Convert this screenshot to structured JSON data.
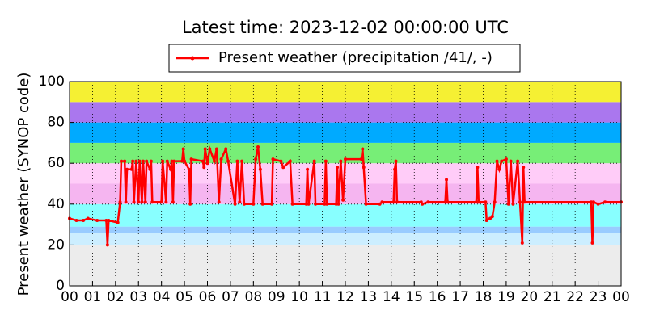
{
  "chart_data": {
    "type": "line",
    "title": "Latest time: 2023-12-02 00:00:00 UTC",
    "y_label": "Present weather (SYNOP code)",
    "legend": "top",
    "grid": true,
    "xlim": [
      0,
      24
    ],
    "ylim": [
      0,
      100
    ],
    "xticks": [
      {
        "value": 0,
        "label": "00"
      },
      {
        "value": 1,
        "label": "01"
      },
      {
        "value": 2,
        "label": "02"
      },
      {
        "value": 3,
        "label": "03"
      },
      {
        "value": 4,
        "label": "04"
      },
      {
        "value": 5,
        "label": "05"
      },
      {
        "value": 6,
        "label": "06"
      },
      {
        "value": 7,
        "label": "07"
      },
      {
        "value": 8,
        "label": "08"
      },
      {
        "value": 9,
        "label": "09"
      },
      {
        "value": 10,
        "label": "10"
      },
      {
        "value": 11,
        "label": "11"
      },
      {
        "value": 12,
        "label": "12"
      },
      {
        "value": 13,
        "label": "13"
      },
      {
        "value": 14,
        "label": "14"
      },
      {
        "value": 15,
        "label": "15"
      },
      {
        "value": 16,
        "label": "16"
      },
      {
        "value": 17,
        "label": "17"
      },
      {
        "value": 18,
        "label": "18"
      },
      {
        "value": 19,
        "label": "19"
      },
      {
        "value": 20,
        "label": "20"
      },
      {
        "value": 21,
        "label": "21"
      },
      {
        "value": 22,
        "label": "22"
      },
      {
        "value": 23,
        "label": "23"
      },
      {
        "value": 24,
        "label": "00"
      }
    ],
    "yticks": [
      0,
      20,
      40,
      60,
      80,
      100
    ],
    "bands": [
      {
        "from": 0,
        "to": 20,
        "color": "#ececec"
      },
      {
        "from": 20,
        "to": 26,
        "color": "#cceeff"
      },
      {
        "from": 26,
        "to": 29,
        "color": "#99ccff"
      },
      {
        "from": 29,
        "to": 40,
        "color": "#88ffff"
      },
      {
        "from": 40,
        "to": 50,
        "color": "#f5b5f0"
      },
      {
        "from": 50,
        "to": 60,
        "color": "#ffccf8"
      },
      {
        "from": 60,
        "to": 70,
        "color": "#77ee77"
      },
      {
        "from": 70,
        "to": 80,
        "color": "#00aaff"
      },
      {
        "from": 80,
        "to": 90,
        "color": "#aa77ee"
      },
      {
        "from": 90,
        "to": 100,
        "color": "#f5f033"
      }
    ],
    "series": [
      {
        "name": "Present weather (precipitation /41/, -)",
        "color": "#ff0000",
        "x": [
          0.0,
          0.3,
          0.6,
          0.8,
          1.2,
          1.6,
          1.65,
          1.7,
          2.1,
          2.2,
          2.25,
          2.4,
          2.45,
          2.5,
          2.7,
          2.75,
          2.8,
          2.9,
          3.0,
          3.05,
          3.15,
          3.2,
          3.3,
          3.35,
          3.5,
          3.55,
          3.6,
          4.0,
          4.05,
          4.2,
          4.25,
          4.4,
          4.45,
          4.5,
          4.55,
          4.9,
          4.95,
          5.0,
          5.2,
          5.25,
          5.3,
          5.8,
          5.85,
          5.9,
          6.0,
          6.1,
          6.3,
          6.4,
          6.5,
          6.6,
          6.8,
          6.9,
          7.2,
          7.3,
          7.4,
          7.5,
          7.6,
          8.0,
          8.1,
          8.2,
          8.3,
          8.4,
          8.8,
          8.85,
          9.2,
          9.3,
          9.6,
          9.7,
          10.3,
          10.35,
          10.4,
          10.65,
          10.7,
          11.1,
          11.15,
          11.2,
          11.6,
          11.65,
          11.7,
          11.8,
          11.9,
          12.0,
          12.7,
          12.75,
          12.8,
          12.9,
          13.5,
          13.6,
          14.1,
          14.15,
          14.2,
          14.25,
          15.3,
          15.35,
          15.6,
          16.35,
          16.4,
          16.45,
          17.7,
          17.75,
          17.8,
          18.1,
          18.15,
          18.3,
          18.4,
          18.5,
          18.6,
          18.7,
          18.8,
          19.0,
          19.1,
          19.2,
          19.3,
          19.5,
          19.6,
          19.7,
          19.75,
          19.8,
          22.7,
          22.75,
          22.8,
          23.0,
          23.3,
          24.0
        ],
        "values": [
          33,
          32,
          32,
          33,
          32,
          32,
          20,
          32,
          31,
          41,
          61,
          61,
          41,
          57,
          57,
          61,
          41,
          61,
          41,
          61,
          41,
          61,
          41,
          61,
          57,
          61,
          41,
          41,
          61,
          41,
          61,
          57,
          61,
          41,
          61,
          61,
          67,
          61,
          57,
          40,
          62,
          61,
          58,
          67,
          60,
          67,
          61,
          67,
          41,
          62,
          67,
          61,
          40,
          61,
          41,
          61,
          40,
          40,
          62,
          68,
          57,
          40,
          40,
          62,
          61,
          58,
          61,
          40,
          40,
          57,
          40,
          61,
          40,
          40,
          61,
          40,
          40,
          58,
          40,
          61,
          42,
          62,
          62,
          67,
          58,
          40,
          40,
          41,
          41,
          57,
          61,
          41,
          41,
          40,
          41,
          41,
          52,
          41,
          41,
          58,
          41,
          41,
          32,
          33,
          34,
          41,
          61,
          57,
          61,
          62,
          40,
          61,
          40,
          61,
          41,
          21,
          58,
          41,
          41,
          21,
          41,
          40,
          41,
          41
        ]
      }
    ]
  }
}
